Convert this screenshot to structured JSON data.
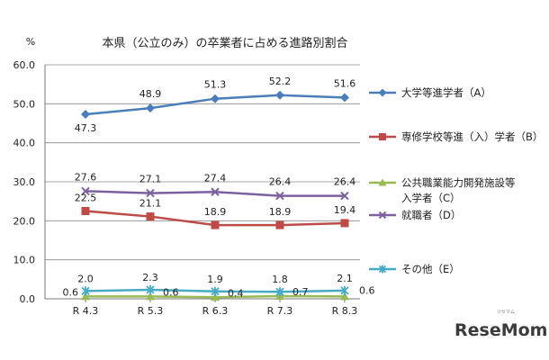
{
  "chart_data": {
    "type": "line",
    "title": "本県（公立のみ）の卒業者に占める進路別割合",
    "ylabel": "%",
    "categories": [
      "R 4.3",
      "R 5.3",
      "R 6.3",
      "R 7.3",
      "R 8.3"
    ],
    "ylim": [
      0,
      60
    ],
    "yticks": [
      "0.0",
      "10.0",
      "20.0",
      "30.0",
      "40.0",
      "50.0",
      "60.0"
    ],
    "grid": true,
    "legend_position": "right",
    "series": [
      {
        "name": "大学等進学者（A）",
        "values": [
          47.3,
          48.9,
          51.3,
          52.2,
          51.6
        ],
        "labels": [
          "47.3",
          "48.9",
          "51.3",
          "52.2",
          "51.6"
        ],
        "color": "#4a7ebb",
        "marker": "diamond"
      },
      {
        "name": "専修学校等進（入）学者（B）",
        "values": [
          22.5,
          21.1,
          18.9,
          18.9,
          19.4
        ],
        "labels": [
          "22.5",
          "21.1",
          "18.9",
          "18.9",
          "19.4"
        ],
        "color": "#be4b48",
        "marker": "square"
      },
      {
        "name": "公共職業能力開発施設等入学者（C）",
        "legend_lines": [
          "公共職業能力開発施設等",
          "入学者（C）"
        ],
        "values": [
          0.6,
          0.6,
          0.4,
          0.7,
          0.6
        ],
        "labels": [
          "0.6",
          "0.6",
          "0.4",
          "0.7",
          "0.6"
        ],
        "color": "#98b954",
        "marker": "triangle"
      },
      {
        "name": "就職者（D）",
        "values": [
          27.6,
          27.1,
          27.4,
          26.4,
          26.4
        ],
        "labels": [
          "27.6",
          "27.1",
          "27.4",
          "26.4",
          "26.4"
        ],
        "color": "#7d60a0",
        "marker": "x"
      },
      {
        "name": "その他（E）",
        "values": [
          2.0,
          2.3,
          1.9,
          1.8,
          2.1
        ],
        "labels": [
          "2.0",
          "2.3",
          "1.9",
          "1.8",
          "2.1"
        ],
        "color": "#46aac5",
        "marker": "star"
      }
    ]
  },
  "watermark": {
    "text": "ReseMom",
    "subtext": "リセマム"
  }
}
